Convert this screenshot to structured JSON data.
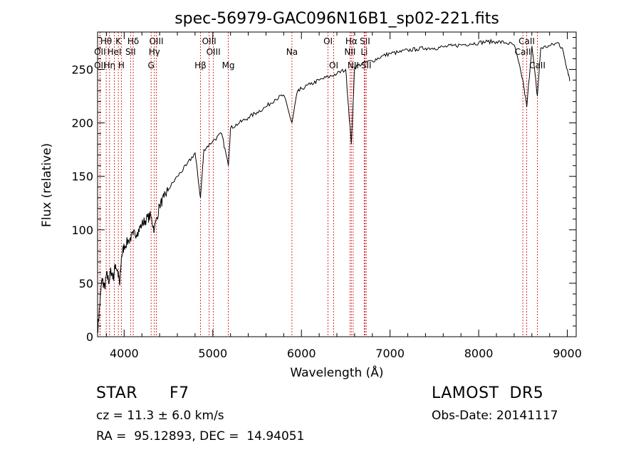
{
  "chart_data": {
    "type": "line",
    "title": "spec-56979-GAC096N16B1_sp02-221.fits",
    "xlabel": "Wavelength (Å)",
    "ylabel": "Flux (relative)",
    "xlim": [
      3700,
      9100
    ],
    "ylim": [
      0,
      285
    ],
    "x_ticks": [
      4000,
      5000,
      6000,
      7000,
      8000,
      9000
    ],
    "y_ticks": [
      0,
      50,
      100,
      150,
      200,
      250
    ],
    "grid": false,
    "line_color": "#000000",
    "marker_color": "#cc0000",
    "spectrum": {
      "name": "",
      "x": [
        3700,
        3730,
        3750,
        3780,
        3800,
        3830,
        3850,
        3880,
        3900,
        3930,
        3950,
        3970,
        4000,
        4050,
        4100,
        4150,
        4200,
        4250,
        4300,
        4340,
        4400,
        4450,
        4500,
        4600,
        4700,
        4800,
        4861,
        4900,
        5000,
        5100,
        5175,
        5200,
        5300,
        5400,
        5500,
        5600,
        5700,
        5800,
        5893,
        5950,
        6000,
        6100,
        6200,
        6300,
        6400,
        6500,
        6563,
        6600,
        6700,
        6800,
        6900,
        7000,
        7100,
        7200,
        7300,
        7400,
        7500,
        7600,
        7700,
        7800,
        7900,
        8000,
        8100,
        8200,
        8300,
        8400,
        8498,
        8542,
        8600,
        8662,
        8700,
        8800,
        8900,
        8950,
        9000,
        9030
      ],
      "y": [
        5,
        35,
        55,
        45,
        58,
        52,
        62,
        55,
        68,
        60,
        48,
        75,
        85,
        90,
        95,
        98,
        105,
        110,
        113,
        100,
        123,
        130,
        138,
        150,
        160,
        172,
        130,
        175,
        183,
        190,
        160,
        195,
        200,
        205,
        210,
        215,
        222,
        226,
        200,
        228,
        232,
        236,
        240,
        243,
        246,
        250,
        180,
        252,
        256,
        258,
        262,
        265,
        266,
        268,
        269,
        270,
        270,
        271,
        272,
        273,
        274,
        275,
        276,
        276,
        275,
        273,
        240,
        215,
        272,
        225,
        270,
        272,
        275,
        268,
        250,
        240
      ]
    },
    "line_markers": [
      {
        "label": "Hθ",
        "x": 3797,
        "row": 1
      },
      {
        "label": "OII",
        "x": 3727,
        "row": 2
      },
      {
        "label": "OII",
        "x": 3727,
        "row": 3
      },
      {
        "label": "Hη",
        "x": 3835,
        "row": 3
      },
      {
        "label": "HeI",
        "x": 3889,
        "row": 2
      },
      {
        "label": "K",
        "x": 3934,
        "row": 1
      },
      {
        "label": "H",
        "x": 3968,
        "row": 3
      },
      {
        "label": "Hδ",
        "x": 4102,
        "row": 1
      },
      {
        "label": "SII",
        "x": 4072,
        "row": 2
      },
      {
        "label": "OIII",
        "x": 4363,
        "row": 1
      },
      {
        "label": "Hγ",
        "x": 4341,
        "row": 2
      },
      {
        "label": "G",
        "x": 4304,
        "row": 3
      },
      {
        "label": "Hβ",
        "x": 4861,
        "row": 3
      },
      {
        "label": "OIII",
        "x": 4959,
        "row": 1
      },
      {
        "label": "OIII",
        "x": 5007,
        "row": 2
      },
      {
        "label": "Mg",
        "x": 5175,
        "row": 3
      },
      {
        "label": "Na",
        "x": 5893,
        "row": 2
      },
      {
        "label": "OI",
        "x": 6300,
        "row": 1
      },
      {
        "label": "OI",
        "x": 6364,
        "row": 3
      },
      {
        "label": "Hα",
        "x": 6563,
        "row": 1
      },
      {
        "label": "NII",
        "x": 6548,
        "row": 2
      },
      {
        "label": "NII",
        "x": 6584,
        "row": 3
      },
      {
        "label": "SII",
        "x": 6717,
        "row": 1
      },
      {
        "label": "Li",
        "x": 6708,
        "row": 2
      },
      {
        "label": "SII",
        "x": 6731,
        "row": 3
      },
      {
        "label": "CaII",
        "x": 8542,
        "row": 1
      },
      {
        "label": "CaII",
        "x": 8498,
        "row": 2
      },
      {
        "label": "CaII",
        "x": 8662,
        "row": 3
      }
    ]
  },
  "info": {
    "class_label": "STAR",
    "subclass": "F7",
    "survey": "LAMOST  DR5",
    "velocity": "cz = 11.3 ± 6.0 km/s",
    "obs_date": "Obs-Date: 20141117",
    "coords": "RA =  95.12893, DEC =  14.94051"
  }
}
